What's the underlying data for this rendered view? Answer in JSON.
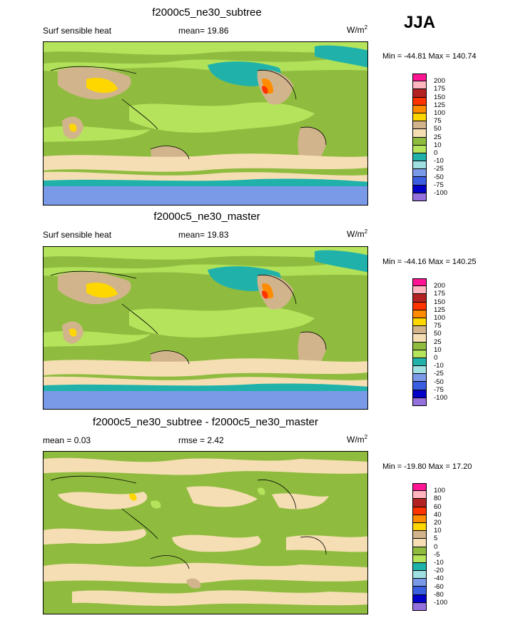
{
  "season": "JJA",
  "panels": [
    {
      "title": "f2000c5_ne30_subtree",
      "left_label": "Surf sensible heat",
      "center_label": "mean=  19.86",
      "units_base": "W/m",
      "units_exp": "2",
      "minmax": "Min = -44.81 Max = 140.74"
    },
    {
      "title": "f2000c5_ne30_master",
      "left_label": "Surf sensible heat",
      "center_label": "mean=  19.83",
      "units_base": "W/m",
      "units_exp": "2",
      "minmax": "Min = -44.16 Max = 140.25"
    },
    {
      "title": "f2000c5_ne30_subtree - f2000c5_ne30_master",
      "left_label": "mean =   0.03",
      "center_label": "rmse =   2.42",
      "units_base": "W/m",
      "units_exp": "2",
      "minmax": "Min = -19.80 Max =  17.20"
    }
  ],
  "colorbars": {
    "field": {
      "labels": [
        "200",
        "175",
        "150",
        "125",
        "100",
        "75",
        "50",
        "25",
        "10",
        "0",
        "-10",
        "-25",
        "-50",
        "-75",
        "-100"
      ],
      "colors": [
        "#ff1493",
        "#ffb6c1",
        "#b22222",
        "#ff3300",
        "#ff8c00",
        "#ffd700",
        "#d2b48c",
        "#f5deb3",
        "#8fbc3f",
        "#b5e35c",
        "#20b2aa",
        "#a0e0e0",
        "#7a9ae8",
        "#3a5fe0",
        "#0000c8",
        "#9370db"
      ]
    },
    "diff": {
      "labels": [
        "100",
        "80",
        "60",
        "40",
        "20",
        "10",
        "5",
        "0",
        "-5",
        "-10",
        "-20",
        "-40",
        "-60",
        "-80",
        "-100"
      ],
      "colors": [
        "#ff1493",
        "#ffb6c1",
        "#b22222",
        "#ff3300",
        "#ff8c00",
        "#ffd700",
        "#d2b48c",
        "#f5deb3",
        "#8fbc3f",
        "#b5e35c",
        "#20b2aa",
        "#a0e0e0",
        "#7a9ae8",
        "#3a5fe0",
        "#0000c8",
        "#9370db"
      ]
    }
  }
}
